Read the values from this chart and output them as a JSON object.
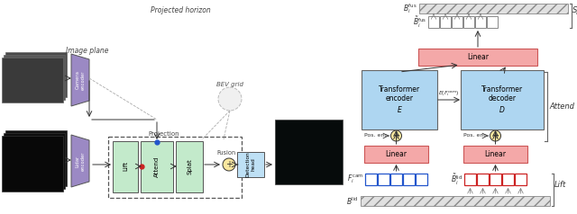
{
  "fig_width": 6.4,
  "fig_height": 2.38,
  "dpi": 100,
  "bg_color": "#ffffff",
  "light_blue": "#AED6F1",
  "light_blue2": "#BEE0F5",
  "light_green": "#C3EACB",
  "light_pink": "#F4A8A8",
  "light_yellow": "#F9E79F",
  "dark_outline": "#333333",
  "purple_enc": "#9B89C4",
  "projected_horizon_text": "Projected horizon",
  "image_plane_text": "Image plane",
  "bev_grid_text": "BEV grid",
  "fusion_text": "Fusion",
  "projection_text": "Projection",
  "splat_label": "Splat",
  "attend_label": "Attend",
  "lift_label": "Lift"
}
